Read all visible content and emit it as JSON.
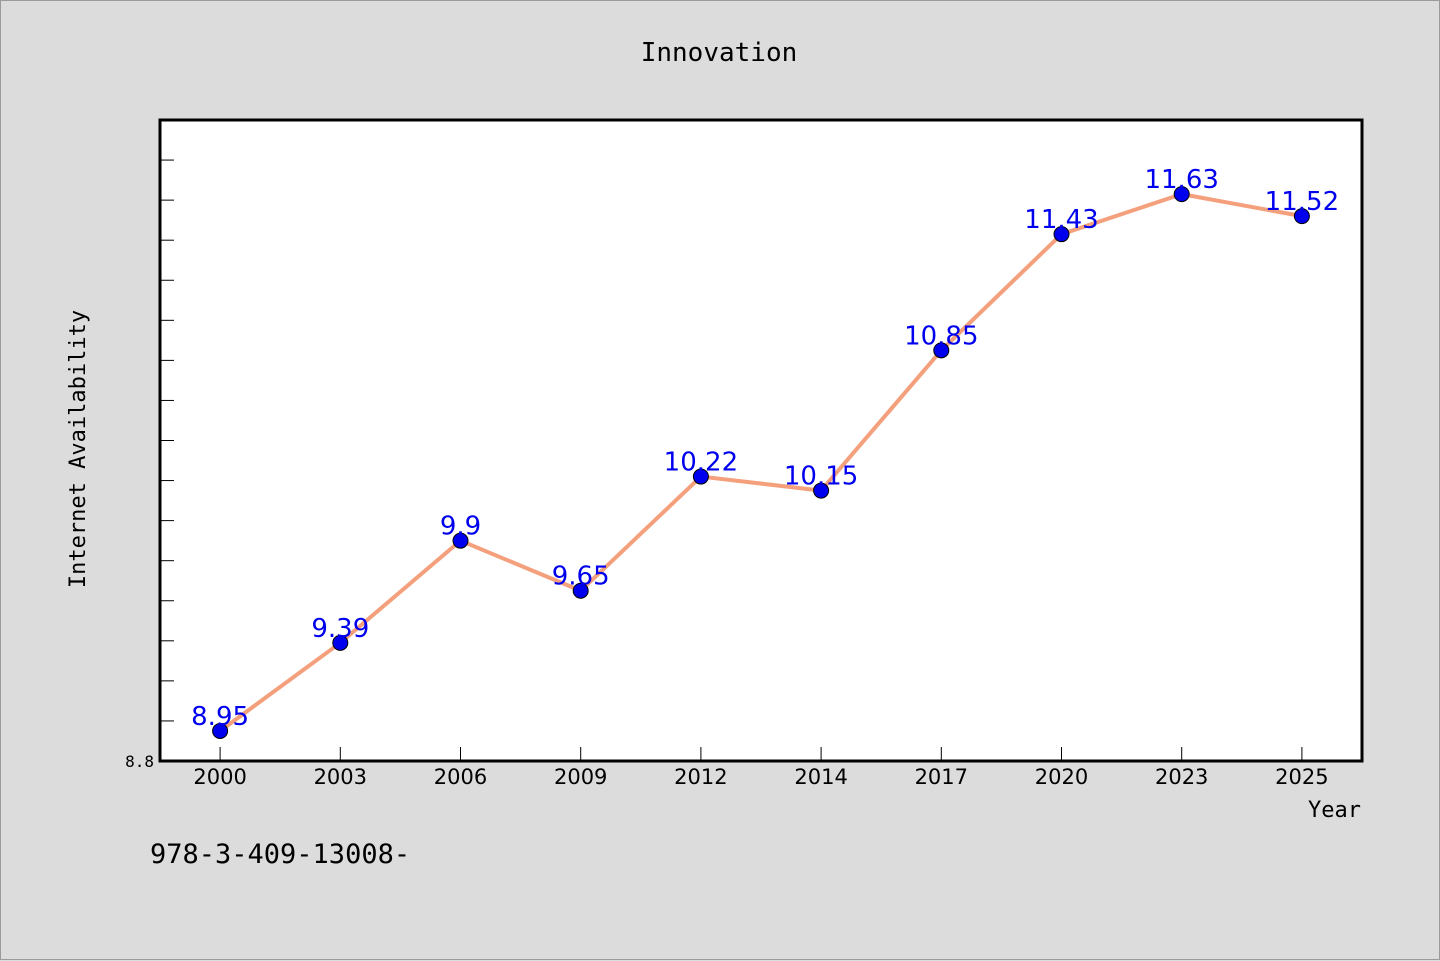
{
  "footer_text": "978-3-409-13008-",
  "colors": {
    "background": "#dcdcdc",
    "plot_background": "#ffffff",
    "line": "#f4a07c",
    "marker": "#0000ee",
    "data_label": "#0000ee"
  },
  "chart_data": {
    "type": "line",
    "title": "Innovation",
    "xlabel": "Year",
    "ylabel": "Internet Availability",
    "categories": [
      "2000",
      "2003",
      "2006",
      "2009",
      "2012",
      "2014",
      "2017",
      "2020",
      "2023",
      "2025"
    ],
    "series": [
      {
        "values": [
          8.95,
          9.39,
          9.9,
          9.65,
          10.22,
          10.15,
          10.85,
          11.43,
          11.63,
          11.52
        ],
        "labels": [
          "8.95",
          "9.39",
          "9.9",
          "9.65",
          "10.22",
          "10.15",
          "10.85",
          "11.43",
          "11.63",
          "11.52"
        ]
      }
    ],
    "ylim": [
      8.8,
      12.0
    ],
    "y_tick_labels": [
      "8.8"
    ],
    "y_minor_tick_step": 0.2,
    "grid": false,
    "legend": "none"
  }
}
